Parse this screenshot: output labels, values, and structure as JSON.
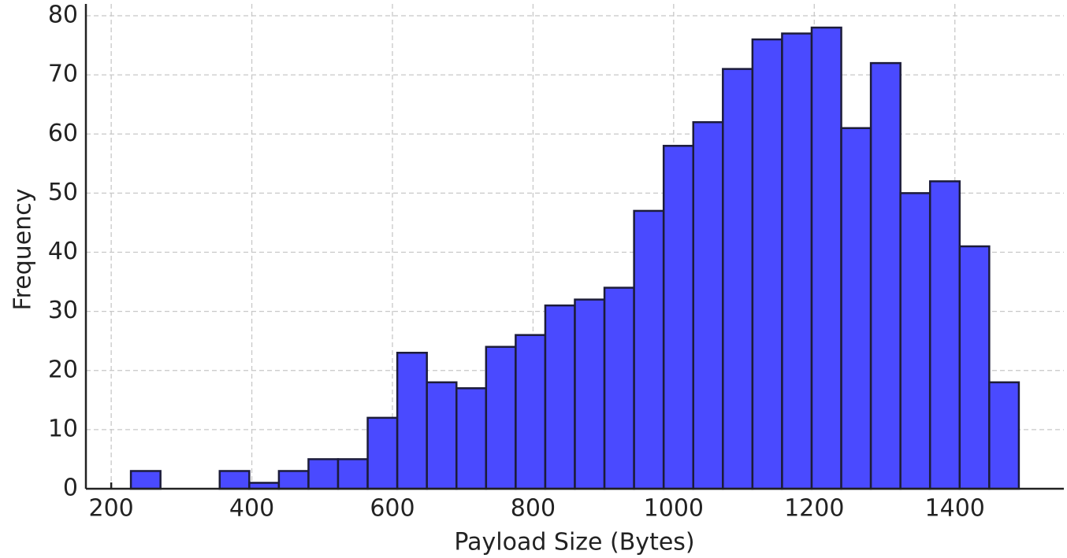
{
  "chart_data": {
    "type": "histogram",
    "x_label": "Payload Size (Bytes)",
    "y_label": "Frequency",
    "bins": [
      228.0,
      270.1,
      312.2,
      354.3,
      396.4,
      438.5,
      480.6,
      522.7,
      564.8,
      606.9,
      649.0,
      691.1,
      733.2,
      775.3,
      817.4,
      859.5,
      901.6,
      943.7,
      985.8,
      1027.9,
      1070.0,
      1112.1,
      1154.2,
      1196.3,
      1238.4,
      1280.5,
      1322.6,
      1364.7,
      1406.8,
      1448.9,
      1491.0
    ],
    "values": [
      3,
      0,
      0,
      3,
      1,
      3,
      5,
      5,
      12,
      23,
      18,
      17,
      24,
      26,
      31,
      32,
      34,
      47,
      58,
      62,
      71,
      76,
      77,
      78,
      61,
      72,
      50,
      52,
      41,
      18
    ],
    "color": "#4a4aff",
    "edge_color": "#1c1c3a",
    "xlim": [
      164,
      1555
    ],
    "ylim": [
      0,
      82
    ],
    "xticks": [
      200,
      400,
      600,
      800,
      1000,
      1200,
      1400
    ],
    "yticks": [
      0,
      10,
      20,
      30,
      40,
      50,
      60,
      70,
      80
    ],
    "grid": true
  }
}
